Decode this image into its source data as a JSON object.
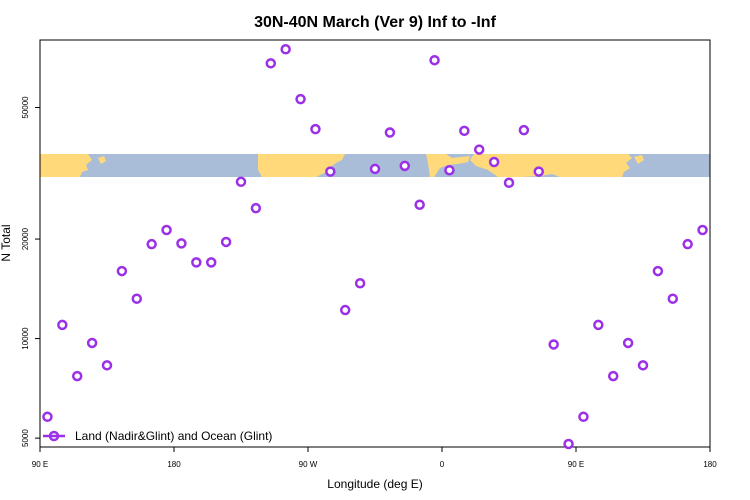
{
  "chart_data": {
    "type": "scatter",
    "title": "30N-40N March (Ver 9)   Inf to -Inf",
    "xlabel": "Longitude (deg E)",
    "ylabel": "N Total",
    "x_ticks": [
      {
        "value": 90,
        "label": "90 E"
      },
      {
        "value": 180,
        "label": "180"
      },
      {
        "value": 270,
        "label": "90 W"
      },
      {
        "value": 360,
        "label": "0"
      },
      {
        "value": 450,
        "label": "90 E"
      },
      {
        "value": 540,
        "label": "180"
      }
    ],
    "y_ticks": [
      5000,
      10000,
      20000,
      50000
    ],
    "y_scale": "log",
    "xlim": [
      90,
      540
    ],
    "ylim": [
      4700,
      80000
    ],
    "legend": {
      "label": "Land (Nadir&Glint) and Ocean (Glint)",
      "position": "bottom-left"
    },
    "series": [
      {
        "name": "Land (Nadir&Glint) and Ocean (Glint)",
        "color": "#9b30e6",
        "x": [
          95,
          105,
          115,
          125,
          135,
          145,
          155,
          165,
          175,
          185,
          195,
          205,
          215,
          225,
          235,
          245,
          255,
          265,
          275,
          285,
          295,
          305,
          315,
          325,
          335,
          345,
          355,
          365,
          375,
          385,
          395,
          405,
          415,
          425,
          435,
          445,
          455,
          465,
          475,
          485,
          495,
          505,
          515,
          525,
          535
        ],
        "y": [
          5800,
          11000,
          7700,
          9700,
          8300,
          16000,
          13200,
          19300,
          21300,
          19400,
          17000,
          17000,
          19600,
          29800,
          24800,
          68000,
          75000,
          53000,
          43000,
          32000,
          12200,
          14700,
          32600,
          42000,
          33300,
          25400,
          69500,
          32300,
          42500,
          37300,
          34200,
          29600,
          42700,
          32000,
          9600,
          4800,
          5800,
          11000,
          7700,
          9700,
          8300,
          16000,
          13200,
          19300,
          21300
        ]
      }
    ]
  },
  "map_strip": {
    "ocean_color": "#a9bcd8",
    "land_color": "#ffd97a"
  }
}
